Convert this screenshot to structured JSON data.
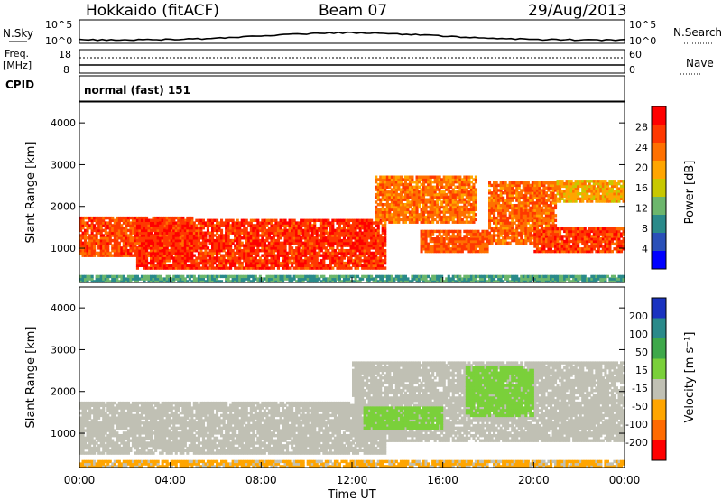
{
  "header": {
    "station": "Hokkaido (fitACF)",
    "beam": "Beam 07",
    "date": "29/Aug/2013"
  },
  "panels": {
    "nsky_label": "N.Sky",
    "nsky_ticks": [
      "10^5",
      "10^0"
    ],
    "nsearch_label": "N.Search",
    "nsearch_ticks": [
      "10^5",
      "10^0"
    ],
    "freq_label": "Freq.",
    "freq_unit": "[MHz]",
    "freq_ticks": [
      "18",
      "8"
    ],
    "nave_label": "Nave",
    "nave_ticks": [
      "60",
      "0"
    ],
    "cpid_label": "CPID",
    "cpid_value": "normal (fast) 151"
  },
  "power_colorbar": {
    "label": "Power [dB]",
    "ticks": [
      "28",
      "24",
      "20",
      "16",
      "12",
      "8",
      "4"
    ],
    "colors": [
      "#ff0000",
      "#ff3800",
      "#ff7000",
      "#ffa500",
      "#c8c800",
      "#6cb66c",
      "#2a8a8a",
      "#2a50b8",
      "#0000ff"
    ]
  },
  "velocity_colorbar": {
    "label": "Velocity [m s⁻¹]",
    "ticks": [
      "200",
      "100",
      "50",
      "15",
      "-15",
      "-50",
      "-100",
      "-200"
    ],
    "colors": [
      "#1a33c0",
      "#2a8a8a",
      "#3ea84a",
      "#7ad03a",
      "#c0c0b4",
      "#ffa500",
      "#ff6a00",
      "#ff0000"
    ]
  },
  "axes": {
    "ylabel": "Slant Range [km]",
    "yticks": [
      "4000",
      "3000",
      "2000",
      "1000"
    ],
    "xticks": [
      "00:00",
      "04:00",
      "08:00",
      "12:00",
      "16:00",
      "20:00",
      "00:00"
    ],
    "xlabel": "Time UT"
  },
  "chart_data": [
    {
      "type": "heatmap",
      "title": "Power",
      "ylabel": "Slant Range [km]",
      "xlabel": "Time UT",
      "x_range": [
        "00:00",
        "24:00"
      ],
      "ylim": [
        180,
        4500
      ],
      "color_label": "Power [dB]",
      "color_range": [
        0,
        32
      ],
      "regions": [
        {
          "t_start": 0.0,
          "t_end": 5.0,
          "r_low": 800,
          "r_high": 1750,
          "value": 27
        },
        {
          "t_start": 2.5,
          "t_end": 13.5,
          "r_low": 500,
          "r_high": 1700,
          "value": 29
        },
        {
          "t_start": 13.0,
          "t_end": 17.5,
          "r_low": 1600,
          "r_high": 2700,
          "value": 24
        },
        {
          "t_start": 15.0,
          "t_end": 18.0,
          "r_low": 900,
          "r_high": 1400,
          "value": 26
        },
        {
          "t_start": 18.0,
          "t_end": 21.0,
          "r_low": 1100,
          "r_high": 2600,
          "value": 25
        },
        {
          "t_start": 20.0,
          "t_end": 24.0,
          "r_low": 900,
          "r_high": 1500,
          "value": 28
        },
        {
          "t_start": 21.0,
          "t_end": 24.0,
          "r_low": 2100,
          "r_high": 2600,
          "value": 20
        },
        {
          "t_start": 0.0,
          "t_end": 24.0,
          "r_low": 180,
          "r_high": 350,
          "value": 10
        }
      ]
    },
    {
      "type": "heatmap",
      "title": "Velocity",
      "ylabel": "Slant Range [km]",
      "xlabel": "Time UT",
      "x_range": [
        "00:00",
        "24:00"
      ],
      "ylim": [
        180,
        4500
      ],
      "color_label": "Velocity [m s⁻¹]",
      "color_range": [
        -250,
        250
      ],
      "regions": [
        {
          "t_start": 0.0,
          "t_end": 13.5,
          "r_low": 500,
          "r_high": 1750,
          "value": 0
        },
        {
          "t_start": 12.0,
          "t_end": 24.0,
          "r_low": 800,
          "r_high": 2700,
          "value": 5
        },
        {
          "t_start": 17.0,
          "t_end": 20.0,
          "r_low": 1400,
          "r_high": 2600,
          "value": 40
        },
        {
          "t_start": 12.5,
          "t_end": 16.0,
          "r_low": 1100,
          "r_high": 1600,
          "value": 30
        },
        {
          "t_start": 0.0,
          "t_end": 24.0,
          "r_low": 180,
          "r_high": 350,
          "value": -20
        }
      ]
    }
  ]
}
